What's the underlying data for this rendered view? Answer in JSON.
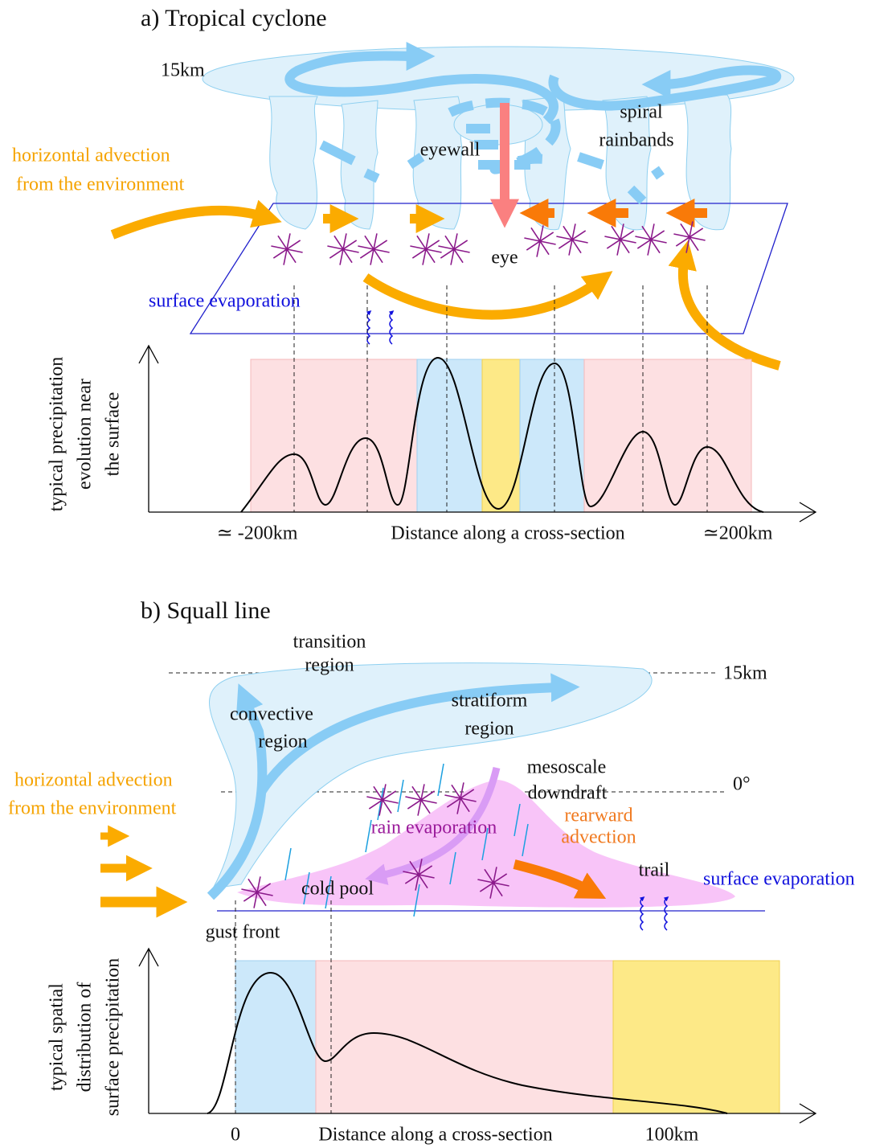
{
  "panel_a": {
    "title": "a) Tropical cyclone",
    "height_label": "15km",
    "advection": [
      "horizontal advection",
      "from the environment"
    ],
    "eyewall": "eyewall",
    "rainbands": [
      "spiral",
      "rainbands"
    ],
    "eye": "eye",
    "surface_evaporation": "surface evaporation",
    "y_axis_label": [
      "typical precipitation",
      "evolution near",
      "the surface"
    ],
    "x_axis": {
      "left": "≃ -200km",
      "center": "Distance along a cross-section",
      "right": "≃200km"
    }
  },
  "panel_b": {
    "title": "b) Squall line",
    "transition": [
      "transition",
      "region"
    ],
    "height_label": "15km",
    "convective": [
      "convective",
      "region"
    ],
    "stratiform": [
      "stratiform",
      "region"
    ],
    "downdraft": [
      "mesoscale",
      "downdraft"
    ],
    "freezing_label": "0°",
    "advection": [
      "horizontal advection",
      "from the environment"
    ],
    "rearward": [
      "rearward",
      "advection"
    ],
    "rain_evaporation": "rain evaporation",
    "trail": "trail",
    "surface_evaporation": "surface evaporation",
    "cold_pool": "cold pool",
    "gust_front": "gust front",
    "y_axis_label": [
      "typical spatial",
      "distribution of",
      "surface precipitation"
    ],
    "x_axis": {
      "left": "0",
      "center": "Distance along a cross-section",
      "right": "100km"
    }
  }
}
